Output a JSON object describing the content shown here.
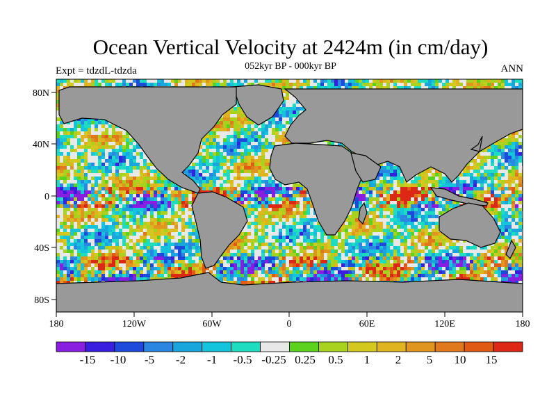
{
  "title": "Ocean Vertical Velocity at 2424m (in cm/day)",
  "subtitle": "052kyr BP - 000kyr BP",
  "left_label": "Expt = tdzdL-tdzda",
  "right_label": "ANN",
  "axes": {
    "x_ticks": [
      "180",
      "120W",
      "60W",
      "0",
      "60E",
      "120E",
      "180"
    ],
    "y_ticks": [
      "80N",
      "40N",
      "0",
      "40S",
      "80S"
    ]
  },
  "colorbar": {
    "labels": [
      "-15",
      "-10",
      "-5",
      "-2",
      "-1",
      "-0.5",
      "-0.25",
      "0.25",
      "0.5",
      "1",
      "2",
      "5",
      "10",
      "15"
    ],
    "colors": [
      "#8a1ee0",
      "#3a1ee0",
      "#1e4adc",
      "#2a86e0",
      "#19a6dc",
      "#14c4dc",
      "#1edcc0",
      "#e8e8e8",
      "#5cd21e",
      "#a8d21e",
      "#d2c81e",
      "#e0b41e",
      "#e0961e",
      "#e0781e",
      "#e05a14",
      "#dc2814"
    ]
  },
  "colors": {
    "land": "#999999",
    "coastline": "#000000"
  }
}
